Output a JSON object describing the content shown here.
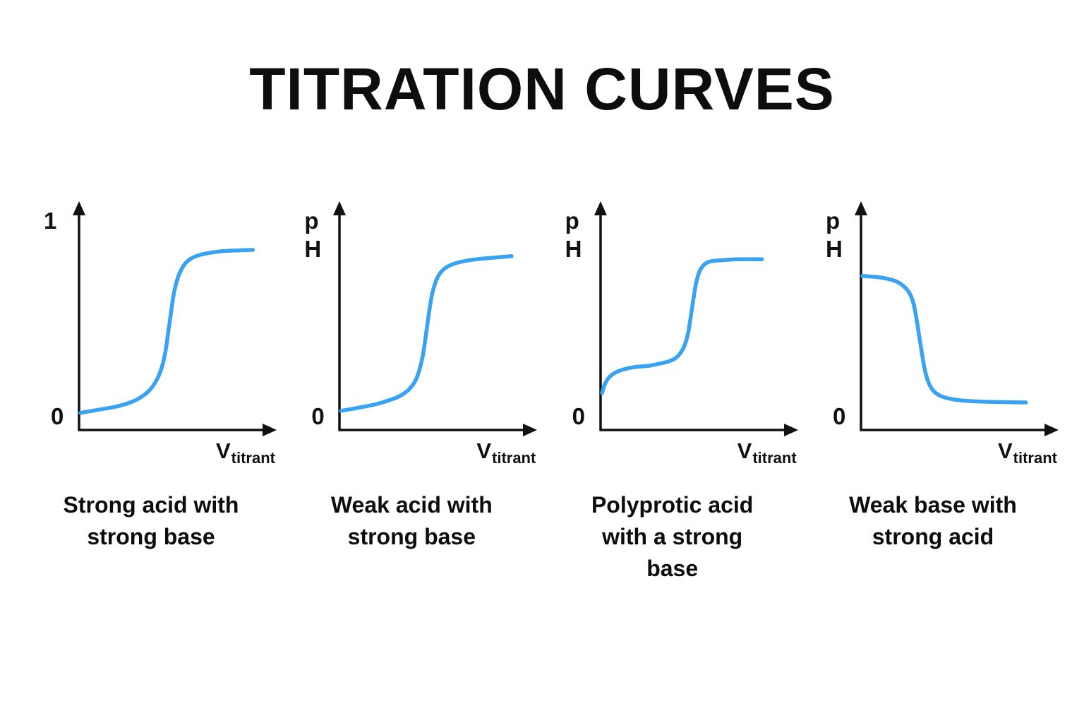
{
  "title": "TITRATION CURVES",
  "colors": {
    "curve": "#39A3F1",
    "axis": "#111111",
    "text": "#0d0d0d",
    "background": "#FFFFFF"
  },
  "charts": [
    {
      "caption": "Strong acid with strong base",
      "y_axis_top_label": "1",
      "y_axis_origin_label": "0",
      "x_axis_label": "V",
      "x_axis_label_subscript": "titrant"
    },
    {
      "caption": "Weak acid with strong base",
      "y_axis_top_label": "p\nH",
      "y_axis_origin_label": "0",
      "x_axis_label": "V",
      "x_axis_label_subscript": "titrant"
    },
    {
      "caption": "Polyprotic acid with a strong base",
      "y_axis_top_label": "p\nH",
      "y_axis_origin_label": "0",
      "x_axis_label": "V",
      "x_axis_label_subscript": "titrant"
    },
    {
      "caption": "Weak base with strong acid",
      "y_axis_top_label": "p\nH",
      "y_axis_origin_label": "0",
      "x_axis_label": "V",
      "x_axis_label_subscript": "titrant"
    }
  ],
  "chart_data": [
    {
      "type": "line",
      "title": "Strong acid with strong base",
      "xlabel": "V titrant",
      "ylabel": "pH (axis marked 0 to 1)",
      "axes_qualitative": true,
      "x_range": [
        0,
        1
      ],
      "y_range": [
        0,
        1
      ],
      "shape": "sigmoid rising: low flat start, steep equivalence jump near mid-volume, high plateau",
      "points": [
        [
          0.0,
          0.075
        ],
        [
          0.1,
          0.09
        ],
        [
          0.2,
          0.105
        ],
        [
          0.28,
          0.125
        ],
        [
          0.34,
          0.15
        ],
        [
          0.39,
          0.185
        ],
        [
          0.43,
          0.235
        ],
        [
          0.46,
          0.3
        ],
        [
          0.48,
          0.38
        ],
        [
          0.495,
          0.47
        ],
        [
          0.51,
          0.56
        ],
        [
          0.525,
          0.645
        ],
        [
          0.545,
          0.715
        ],
        [
          0.57,
          0.765
        ],
        [
          0.6,
          0.8
        ],
        [
          0.65,
          0.825
        ],
        [
          0.72,
          0.84
        ],
        [
          0.82,
          0.85
        ],
        [
          0.97,
          0.855
        ]
      ]
    },
    {
      "type": "line",
      "title": "Weak acid with strong base",
      "xlabel": "V titrant",
      "ylabel": "pH",
      "axes_qualitative": true,
      "x_range": [
        0,
        1
      ],
      "y_range": [
        0,
        1
      ],
      "shape": "sigmoid rising with buffer region before steep equivalence jump, then plateau",
      "points": [
        [
          0.0,
          0.085
        ],
        [
          0.1,
          0.1
        ],
        [
          0.19,
          0.115
        ],
        [
          0.27,
          0.135
        ],
        [
          0.33,
          0.155
        ],
        [
          0.38,
          0.185
        ],
        [
          0.42,
          0.23
        ],
        [
          0.445,
          0.29
        ],
        [
          0.465,
          0.37
        ],
        [
          0.48,
          0.46
        ],
        [
          0.495,
          0.55
        ],
        [
          0.51,
          0.63
        ],
        [
          0.53,
          0.695
        ],
        [
          0.555,
          0.74
        ],
        [
          0.59,
          0.77
        ],
        [
          0.64,
          0.79
        ],
        [
          0.72,
          0.805
        ],
        [
          0.82,
          0.815
        ],
        [
          0.96,
          0.825
        ]
      ]
    },
    {
      "type": "line",
      "title": "Polyprotic acid with a strong base",
      "xlabel": "V titrant",
      "ylabel": "pH",
      "axes_qualitative": true,
      "x_range": [
        0,
        1
      ],
      "y_range": [
        0,
        1
      ],
      "shape": "two-step curve: quick initial rise to first plateau, second steep jump to upper plateau",
      "points": [
        [
          0.0,
          0.17
        ],
        [
          0.015,
          0.21
        ],
        [
          0.04,
          0.245
        ],
        [
          0.08,
          0.27
        ],
        [
          0.13,
          0.285
        ],
        [
          0.19,
          0.295
        ],
        [
          0.26,
          0.3
        ],
        [
          0.32,
          0.31
        ],
        [
          0.37,
          0.32
        ],
        [
          0.41,
          0.335
        ],
        [
          0.44,
          0.36
        ],
        [
          0.465,
          0.4
        ],
        [
          0.485,
          0.46
        ],
        [
          0.5,
          0.54
        ],
        [
          0.515,
          0.625
        ],
        [
          0.53,
          0.7
        ],
        [
          0.55,
          0.755
        ],
        [
          0.575,
          0.785
        ],
        [
          0.61,
          0.8
        ],
        [
          0.67,
          0.805
        ],
        [
          0.76,
          0.81
        ],
        [
          0.9,
          0.81
        ]
      ]
    },
    {
      "type": "line",
      "title": "Weak base with strong acid",
      "xlabel": "V titrant",
      "ylabel": "pH",
      "axes_qualitative": true,
      "x_range": [
        0,
        1
      ],
      "y_range": [
        0,
        1
      ],
      "shape": "inverted sigmoid: high flat start, steep drop at equivalence, low plateau",
      "points": [
        [
          0.0,
          0.73
        ],
        [
          0.08,
          0.725
        ],
        [
          0.15,
          0.715
        ],
        [
          0.2,
          0.7
        ],
        [
          0.24,
          0.675
        ],
        [
          0.27,
          0.64
        ],
        [
          0.29,
          0.59
        ],
        [
          0.305,
          0.52
        ],
        [
          0.32,
          0.44
        ],
        [
          0.335,
          0.36
        ],
        [
          0.35,
          0.285
        ],
        [
          0.37,
          0.225
        ],
        [
          0.395,
          0.185
        ],
        [
          0.43,
          0.16
        ],
        [
          0.48,
          0.145
        ],
        [
          0.55,
          0.135
        ],
        [
          0.64,
          0.13
        ],
        [
          0.76,
          0.127
        ],
        [
          0.92,
          0.125
        ]
      ]
    }
  ]
}
